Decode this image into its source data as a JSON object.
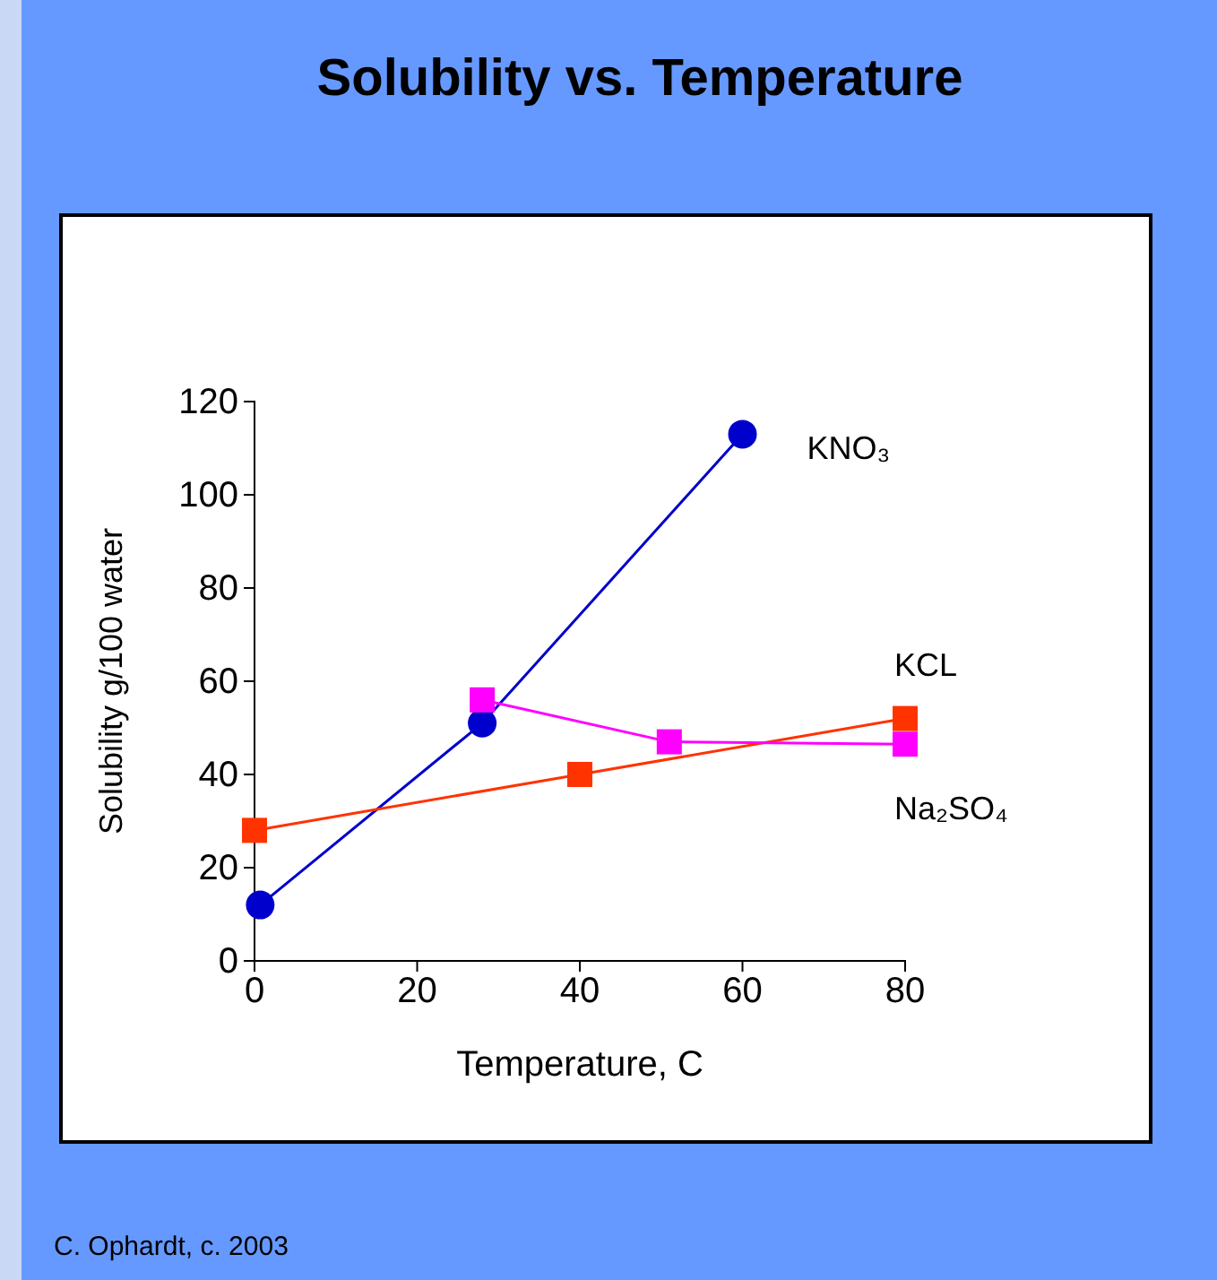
{
  "chart_data": {
    "type": "line",
    "title": "Solubility vs. Temperature",
    "xlabel": "Temperature, C",
    "ylabel": "Solubility g/100 water",
    "xlim": [
      0,
      80
    ],
    "xticks": [
      0,
      20,
      40,
      60,
      80
    ],
    "ylim": [
      0,
      120
    ],
    "yticks": [
      0,
      20,
      40,
      60,
      80,
      100,
      120
    ],
    "grid": false,
    "series": [
      {
        "name": "KNO₃",
        "color": "#0000cc",
        "marker": "circle",
        "x": [
          0.7,
          28,
          60
        ],
        "values": [
          12,
          51,
          113
        ]
      },
      {
        "name": "KCL",
        "color": "#ff3300",
        "marker": "square",
        "x": [
          0,
          40,
          80
        ],
        "values": [
          28,
          40,
          52
        ]
      },
      {
        "name": "Na₂SO₄",
        "color": "#ff00ff",
        "marker": "square",
        "x": [
          28,
          51,
          80
        ],
        "values": [
          56,
          47,
          46.5
        ]
      }
    ],
    "annotations": [
      "C. Ophardt, c. 2003"
    ]
  }
}
